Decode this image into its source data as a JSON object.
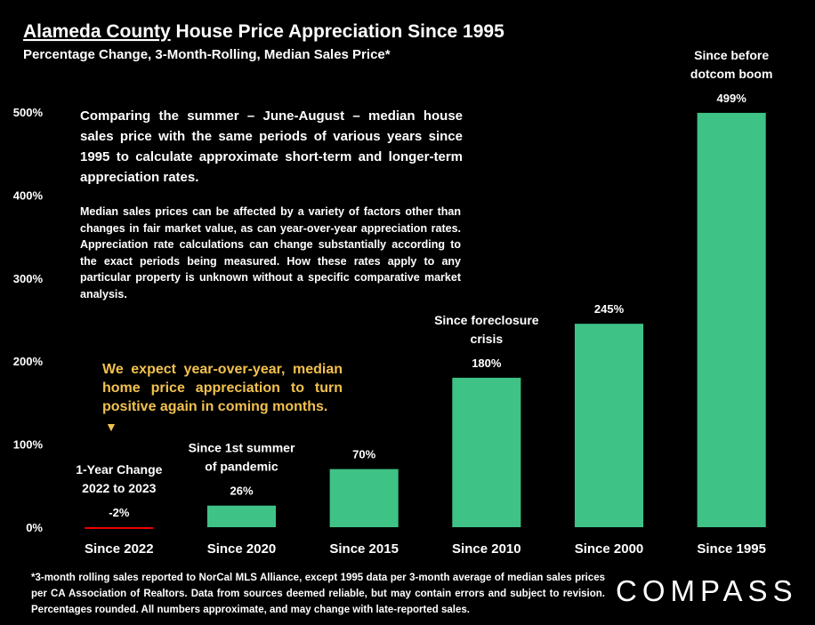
{
  "chart_data": {
    "type": "bar",
    "title": {
      "underlined": "Alameda County",
      "rest": "House Price Appreciation Since 1995"
    },
    "subtitle": "Percentage Change, 3-Month-Rolling, Median Sales Price*",
    "categories": [
      "Since 2022",
      "Since 2020",
      "Since 2015",
      "Since 2010",
      "Since 2000",
      "Since 1995"
    ],
    "values": [
      -2,
      26,
      70,
      180,
      245,
      499
    ],
    "value_labels": [
      "-2%",
      "26%",
      "70%",
      "180%",
      "245%",
      "499%"
    ],
    "colors": [
      "#ff0000",
      "#3fc285",
      "#3fc285",
      "#3fc285",
      "#3fc285",
      "#3fc285"
    ],
    "bar_notes": [
      [
        "1-Year Change",
        "2022 to 2023"
      ],
      [
        "Since 1st summer",
        "of pandemic"
      ],
      null,
      [
        "Since foreclosure",
        "crisis"
      ],
      null,
      [
        "Since before",
        "dotcom boom"
      ]
    ],
    "ylim": [
      0,
      500
    ],
    "yticks": [
      {
        "value": 0,
        "label": "0%"
      },
      {
        "value": 100,
        "label": "100%"
      },
      {
        "value": 200,
        "label": "200%"
      },
      {
        "value": 300,
        "label": "300%"
      },
      {
        "value": 400,
        "label": "400%"
      },
      {
        "value": 500,
        "label": "500%"
      }
    ],
    "grid": false,
    "intro": "Comparing the summer – June-August – median house sales price with the same periods of various years since 1995 to calculate approximate short-term and longer-term appreciation rates.",
    "caveat": "Median sales prices can be affected by a variety of factors other than changes in fair market value, as can year-over-year appreciation rates. Appreciation rate calculations can change substantially according to the exact periods being measured. How these rates apply to any particular property is unknown without a specific comparative market analysis.",
    "callout": "We expect year-over-year, median home price appreciation to turn positive again in coming months.",
    "footnote": "*3-month rolling sales reported to NorCal MLS Alliance, except 1995 data per 3-month average of median sales prices per CA Association of Realtors. Data from sources deemed reliable, but may contain errors and subject to revision. Percentages rounded. All numbers approximate, and may change with late-reported sales.",
    "brand": "COMPASS"
  }
}
